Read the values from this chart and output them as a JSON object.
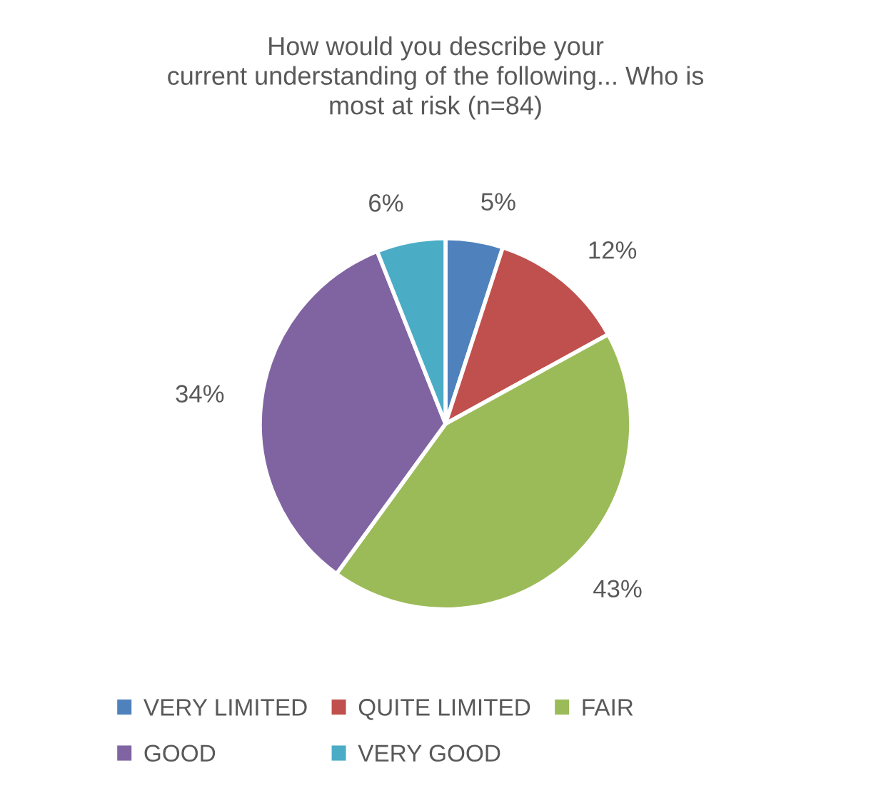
{
  "chart_data": {
    "type": "pie",
    "title": "How would you describe your\ncurrent understanding of the following... Who is\nmost at risk (n=84)",
    "categories": [
      "VERY LIMITED",
      "QUITE LIMITED",
      "FAIR",
      "GOOD",
      "VERY GOOD"
    ],
    "values": [
      5,
      12,
      43,
      34,
      6
    ],
    "value_labels": [
      "5%",
      "12%",
      "43%",
      "34%",
      "6%"
    ],
    "colors": [
      "#4f81bd",
      "#c0504d",
      "#9bbb59",
      "#8064a2",
      "#4bacc6"
    ],
    "legend": "bottom"
  }
}
